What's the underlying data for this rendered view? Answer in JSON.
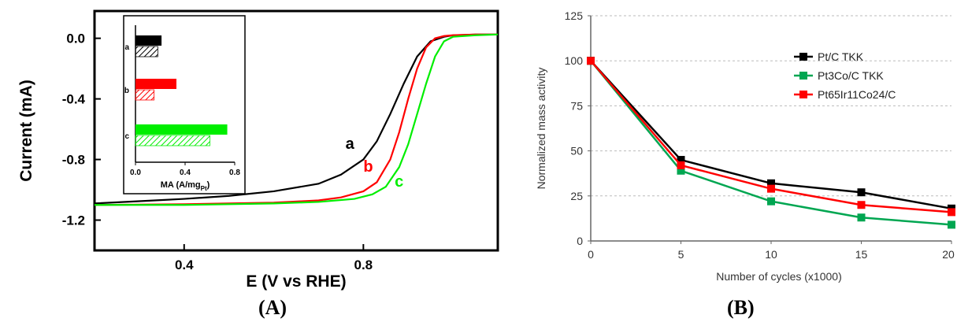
{
  "panels": {
    "a": "(A)",
    "b": "(B)"
  },
  "chart_data": [
    {
      "type": "line",
      "xlabel": "E (V vs RHE)",
      "ylabel": "Current (mA)",
      "xlim": [
        0.2,
        1.1
      ],
      "ylim": [
        -1.4,
        0.18
      ],
      "xticks": [
        "0.4",
        "0.8"
      ],
      "yticks": [
        "0.0",
        "-0.4",
        "-0.8",
        "-1.2"
      ],
      "series": [
        {
          "name": "a",
          "color": "#000000",
          "x": [
            0.2,
            0.3,
            0.4,
            0.5,
            0.6,
            0.7,
            0.75,
            0.8,
            0.83,
            0.86,
            0.89,
            0.92,
            0.95,
            0.98,
            1.0,
            1.05,
            1.1
          ],
          "y": [
            -1.09,
            -1.075,
            -1.06,
            -1.04,
            -1.01,
            -0.96,
            -0.9,
            -0.8,
            -0.68,
            -0.5,
            -0.3,
            -0.12,
            -0.02,
            0.01,
            0.02,
            0.025,
            0.025
          ]
        },
        {
          "name": "b",
          "color": "#ff0000",
          "x": [
            0.2,
            0.4,
            0.6,
            0.7,
            0.75,
            0.8,
            0.83,
            0.86,
            0.88,
            0.9,
            0.92,
            0.94,
            0.96,
            0.98,
            1.0,
            1.05,
            1.1
          ],
          "y": [
            -1.1,
            -1.095,
            -1.085,
            -1.07,
            -1.05,
            -1.01,
            -0.95,
            -0.8,
            -0.62,
            -0.4,
            -0.2,
            -0.06,
            0.0,
            0.015,
            0.02,
            0.025,
            0.025
          ]
        },
        {
          "name": "c",
          "color": "#00ee00",
          "x": [
            0.2,
            0.4,
            0.6,
            0.7,
            0.78,
            0.82,
            0.85,
            0.88,
            0.9,
            0.92,
            0.94,
            0.96,
            0.98,
            1.0,
            1.05,
            1.1
          ],
          "y": [
            -1.1,
            -1.1,
            -1.09,
            -1.08,
            -1.06,
            -1.03,
            -0.98,
            -0.85,
            -0.7,
            -0.5,
            -0.3,
            -0.12,
            -0.02,
            0.01,
            0.02,
            0.025
          ]
        }
      ],
      "inset": {
        "type": "bar",
        "orientation": "horizontal",
        "xlabel": "MA (A/mg",
        "xlabel_sub": "Pt",
        "xlabel_end": ")",
        "xlim": [
          0,
          0.8
        ],
        "xticks": [
          "0.0",
          "0.4",
          "0.8"
        ],
        "categories": [
          "a",
          "b",
          "c"
        ],
        "series": [
          {
            "pattern": "solid",
            "values": [
              0.21,
              0.33,
              0.74
            ]
          },
          {
            "pattern": "hatched",
            "values": [
              0.18,
              0.15,
              0.6
            ]
          }
        ],
        "colors": [
          "#000000",
          "#ff0000",
          "#00ee00"
        ]
      }
    },
    {
      "type": "line",
      "xlabel": "Number of cycles (x1000)",
      "ylabel": "Normalized mass activity",
      "xlim": [
        0,
        20
      ],
      "ylim": [
        0,
        125
      ],
      "xticks": [
        "0",
        "5",
        "10",
        "15",
        "20"
      ],
      "yticks": [
        "0",
        "25",
        "50",
        "75",
        "100",
        "125"
      ],
      "grid": true,
      "legend": "top-right",
      "x": [
        0,
        5,
        10,
        15,
        20
      ],
      "series": [
        {
          "name": "Pt/C TKK",
          "color": "#000000",
          "values": [
            100,
            45,
            32,
            27,
            18
          ]
        },
        {
          "name": "Pt3Co/C TKK",
          "color": "#00a651",
          "values": [
            100,
            39,
            22,
            13,
            9
          ]
        },
        {
          "name": "Pt65Ir11Co24/C",
          "color": "#ff0000",
          "values": [
            100,
            42,
            29,
            20,
            16
          ]
        }
      ]
    }
  ]
}
